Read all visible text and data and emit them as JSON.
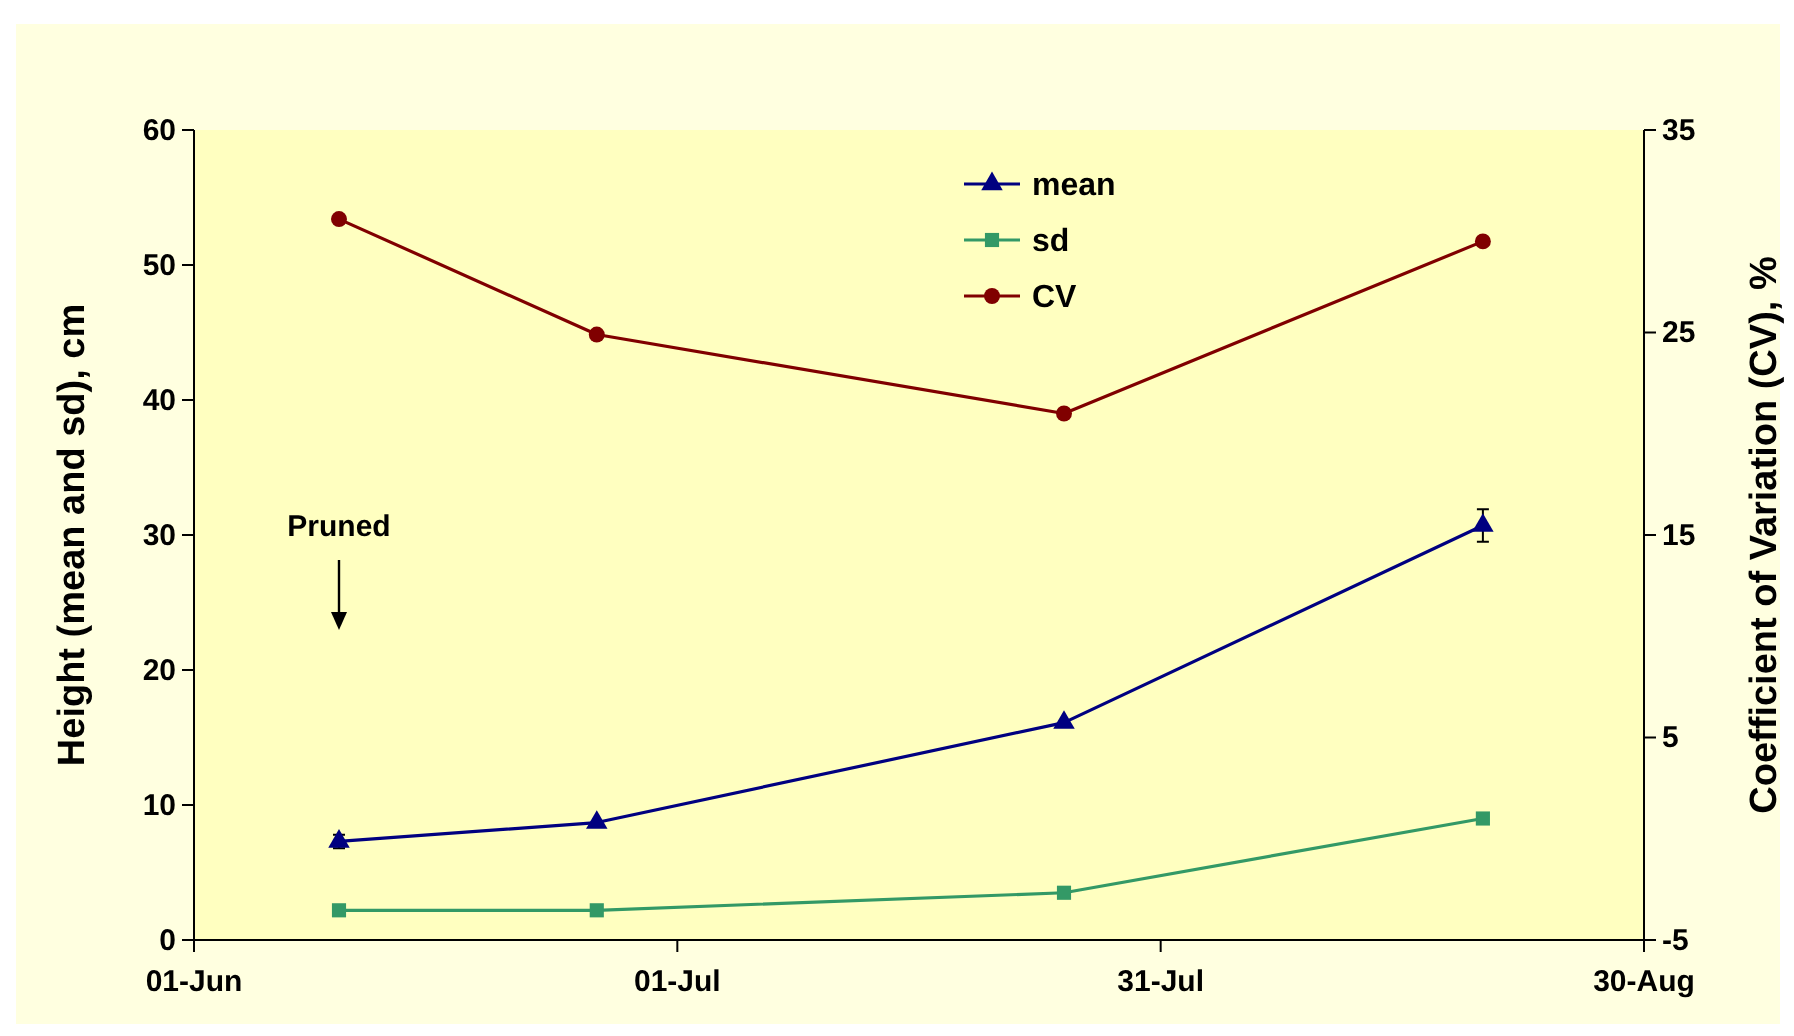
{
  "chart_data": {
    "type": "line",
    "ylabel": "Height (mean and sd), cm",
    "y2label": "Coefficient of Variation (CV), %",
    "x": [
      "--06-10",
      "--06-26",
      "--07-25",
      "--08-20"
    ],
    "xlim": [
      "--06-01",
      "--08-30"
    ],
    "xticks": [
      {
        "value": "--06-01",
        "label": "01-Jun"
      },
      {
        "value": "--07-01",
        "label": "01-Jul"
      },
      {
        "value": "--07-31",
        "label": "31-Jul"
      },
      {
        "value": "--08-30",
        "label": "30-Aug"
      }
    ],
    "ylim": [
      0,
      60
    ],
    "yticks": [
      0,
      10,
      20,
      30,
      40,
      50,
      60
    ],
    "y2lim": [
      -5,
      35
    ],
    "y2ticks": [
      -5,
      5,
      15,
      25,
      35
    ],
    "series": [
      {
        "name": "mean",
        "color": "#000080",
        "marker": "triangle",
        "values": [
          7.3,
          8.7,
          16.1,
          30.7
        ],
        "errors": [
          0.5,
          null,
          null,
          1.2
        ]
      },
      {
        "name": "sd",
        "color": "#339966",
        "marker": "square",
        "values": [
          2.2,
          2.2,
          3.5,
          9.0
        ]
      },
      {
        "name": "CV",
        "color": "#800000",
        "marker": "circle",
        "axis": "y2",
        "values": [
          30.6,
          24.9,
          21.0,
          29.5
        ]
      }
    ],
    "annotations": [
      "Pruned"
    ],
    "legend": "top",
    "grid": false
  }
}
